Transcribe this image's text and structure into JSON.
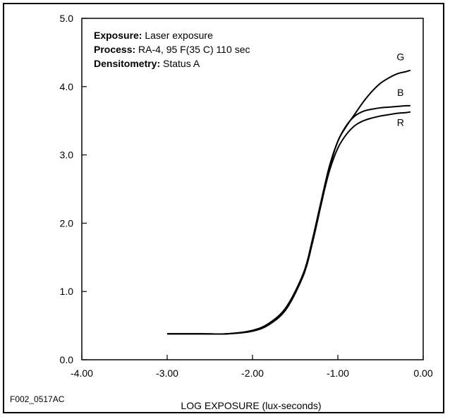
{
  "chart_data": {
    "type": "line",
    "title": "",
    "xlabel": "LOG EXPOSURE (lux-seconds)",
    "ylabel": "",
    "xlim": [
      -4.0,
      0.0
    ],
    "ylim": [
      0.0,
      5.0
    ],
    "x_ticks": [
      -4.0,
      -3.0,
      -2.0,
      -1.0,
      0.0
    ],
    "x_tick_labels": [
      "-4.00",
      "-3.00",
      "-2.00",
      "-1.00",
      "0.00"
    ],
    "y_ticks": [
      0.0,
      1.0,
      2.0,
      3.0,
      4.0,
      5.0
    ],
    "y_tick_labels": [
      "0.0",
      "1.0",
      "2.0",
      "3.0",
      "4.0",
      "5.0"
    ],
    "grid": false,
    "annotations": [
      {
        "bold": "Exposure:",
        "text": " Laser exposure"
      },
      {
        "bold": "Process:",
        "text": " RA-4, 95  F(35  C) 110 sec"
      },
      {
        "bold": "Densitometry:",
        "text": " Status A"
      }
    ],
    "figure_code": "F002_0517AC",
    "series": [
      {
        "name": "G",
        "x": [
          -3.0,
          -2.6,
          -2.3,
          -2.0,
          -1.8,
          -1.6,
          -1.4,
          -1.3,
          -1.2,
          -1.1,
          -1.0,
          -0.9,
          -0.8,
          -0.7,
          -0.6,
          -0.5,
          -0.4,
          -0.3,
          -0.2,
          -0.15
        ],
        "y": [
          0.38,
          0.38,
          0.38,
          0.42,
          0.52,
          0.75,
          1.25,
          1.7,
          2.25,
          2.8,
          3.2,
          3.42,
          3.6,
          3.78,
          3.93,
          4.05,
          4.13,
          4.19,
          4.22,
          4.24
        ]
      },
      {
        "name": "B",
        "x": [
          -3.0,
          -2.6,
          -2.3,
          -2.0,
          -1.8,
          -1.6,
          -1.4,
          -1.3,
          -1.2,
          -1.1,
          -1.0,
          -0.9,
          -0.8,
          -0.7,
          -0.6,
          -0.5,
          -0.4,
          -0.3,
          -0.2,
          -0.15
        ],
        "y": [
          0.38,
          0.38,
          0.38,
          0.43,
          0.54,
          0.78,
          1.28,
          1.75,
          2.3,
          2.83,
          3.2,
          3.43,
          3.57,
          3.64,
          3.67,
          3.69,
          3.7,
          3.71,
          3.72,
          3.72
        ]
      },
      {
        "name": "R",
        "x": [
          -3.0,
          -2.6,
          -2.3,
          -2.0,
          -1.8,
          -1.6,
          -1.4,
          -1.3,
          -1.2,
          -1.1,
          -1.0,
          -0.9,
          -0.8,
          -0.7,
          -0.6,
          -0.5,
          -0.4,
          -0.3,
          -0.2,
          -0.15
        ],
        "y": [
          0.38,
          0.38,
          0.38,
          0.42,
          0.52,
          0.76,
          1.25,
          1.72,
          2.26,
          2.76,
          3.1,
          3.3,
          3.43,
          3.5,
          3.54,
          3.57,
          3.59,
          3.61,
          3.62,
          3.63
        ]
      }
    ]
  }
}
